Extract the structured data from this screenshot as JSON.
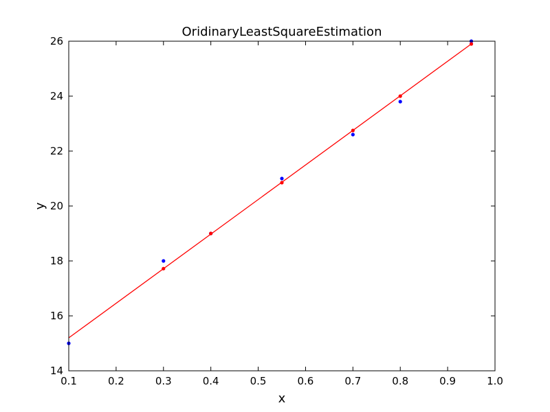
{
  "chart_data": {
    "type": "scatter",
    "title": "OridinaryLeastSquareEstimation",
    "xlabel": "x",
    "ylabel": "y",
    "xlim": [
      0.1,
      1.0
    ],
    "ylim": [
      14,
      26
    ],
    "xticks": [
      "0.1",
      "0.2",
      "0.3",
      "0.4",
      "0.5",
      "0.6",
      "0.7",
      "0.8",
      "0.9",
      "1.0"
    ],
    "yticks": [
      "14",
      "16",
      "18",
      "20",
      "22",
      "24",
      "26"
    ],
    "grid": false,
    "series": [
      {
        "type": "scatter",
        "color": "#0000ff",
        "points": [
          {
            "x": 0.1,
            "y": 15.0
          },
          {
            "x": 0.3,
            "y": 18.0
          },
          {
            "x": 0.4,
            "y": 19.0
          },
          {
            "x": 0.55,
            "y": 21.0
          },
          {
            "x": 0.7,
            "y": 22.6
          },
          {
            "x": 0.8,
            "y": 23.8
          },
          {
            "x": 0.95,
            "y": 26.0
          }
        ]
      },
      {
        "type": "scatter",
        "color": "#ff0000",
        "points": [
          {
            "x": 0.3,
            "y": 17.72
          },
          {
            "x": 0.4,
            "y": 19.0
          },
          {
            "x": 0.55,
            "y": 20.85
          },
          {
            "x": 0.7,
            "y": 22.75
          },
          {
            "x": 0.8,
            "y": 24.0
          },
          {
            "x": 0.95,
            "y": 25.9
          }
        ]
      },
      {
        "type": "line",
        "color": "#ff0000",
        "points": [
          {
            "x": 0.1,
            "y": 15.2
          },
          {
            "x": 0.95,
            "y": 25.9
          }
        ]
      }
    ]
  }
}
